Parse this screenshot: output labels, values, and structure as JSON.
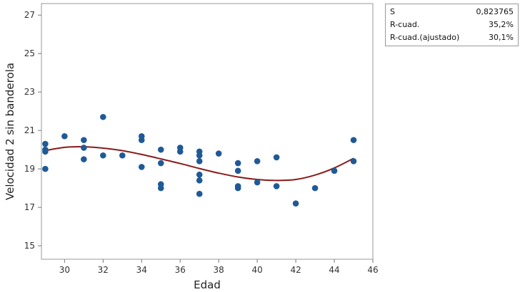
{
  "chart_data": {
    "type": "scatter",
    "title": "",
    "xlabel": "Edad",
    "ylabel": "Velocidad 2 sin banderola",
    "xlim": [
      28.8,
      46
    ],
    "ylim": [
      14.3,
      27.6
    ],
    "xticks": [
      "30",
      "32",
      "34",
      "36",
      "38",
      "40",
      "42",
      "44",
      "46"
    ],
    "yticks": [
      "15",
      "17",
      "19",
      "21",
      "23",
      "25",
      "27"
    ],
    "grid": false,
    "legend": "none",
    "points": [
      {
        "x": 29,
        "y": 20.3
      },
      {
        "x": 29,
        "y": 20.0
      },
      {
        "x": 29,
        "y": 19.9
      },
      {
        "x": 29,
        "y": 19.0
      },
      {
        "x": 30,
        "y": 20.7
      },
      {
        "x": 31,
        "y": 20.5
      },
      {
        "x": 31,
        "y": 20.1
      },
      {
        "x": 31,
        "y": 19.5
      },
      {
        "x": 32,
        "y": 21.7
      },
      {
        "x": 32,
        "y": 19.7
      },
      {
        "x": 33,
        "y": 19.7
      },
      {
        "x": 34,
        "y": 20.7
      },
      {
        "x": 34,
        "y": 20.5
      },
      {
        "x": 34,
        "y": 19.1
      },
      {
        "x": 35,
        "y": 20.0
      },
      {
        "x": 35,
        "y": 19.3
      },
      {
        "x": 35,
        "y": 18.2
      },
      {
        "x": 35,
        "y": 18.0
      },
      {
        "x": 36,
        "y": 20.1
      },
      {
        "x": 36,
        "y": 19.9
      },
      {
        "x": 37,
        "y": 19.9
      },
      {
        "x": 37,
        "y": 19.7
      },
      {
        "x": 37,
        "y": 19.4
      },
      {
        "x": 37,
        "y": 18.7
      },
      {
        "x": 37,
        "y": 18.4
      },
      {
        "x": 37,
        "y": 17.7
      },
      {
        "x": 38,
        "y": 19.8
      },
      {
        "x": 39,
        "y": 19.3
      },
      {
        "x": 39,
        "y": 18.9
      },
      {
        "x": 39,
        "y": 18.1
      },
      {
        "x": 39,
        "y": 18.0
      },
      {
        "x": 40,
        "y": 19.4
      },
      {
        "x": 40,
        "y": 18.3
      },
      {
        "x": 41,
        "y": 19.6
      },
      {
        "x": 41,
        "y": 18.1
      },
      {
        "x": 42,
        "y": 17.2
      },
      {
        "x": 43,
        "y": 18.0
      },
      {
        "x": 44,
        "y": 18.9
      },
      {
        "x": 45,
        "y": 20.5
      },
      {
        "x": 45,
        "y": 19.4
      }
    ],
    "fit_curve": [
      {
        "x": 29,
        "y": 19.95
      },
      {
        "x": 30,
        "y": 20.12
      },
      {
        "x": 31,
        "y": 20.15
      },
      {
        "x": 32,
        "y": 20.08
      },
      {
        "x": 33,
        "y": 19.95
      },
      {
        "x": 34,
        "y": 19.75
      },
      {
        "x": 35,
        "y": 19.52
      },
      {
        "x": 36,
        "y": 19.28
      },
      {
        "x": 37,
        "y": 19.02
      },
      {
        "x": 38,
        "y": 18.78
      },
      {
        "x": 39,
        "y": 18.58
      },
      {
        "x": 40,
        "y": 18.45
      },
      {
        "x": 41,
        "y": 18.4
      },
      {
        "x": 42,
        "y": 18.45
      },
      {
        "x": 43,
        "y": 18.68
      },
      {
        "x": 44,
        "y": 19.05
      },
      {
        "x": 45,
        "y": 19.55
      }
    ],
    "colors": {
      "points": "#1f5a96",
      "curve": "#8b1a1a",
      "frame": "#9a9a9a"
    }
  },
  "stats": [
    {
      "label": "S",
      "value": "0,823765"
    },
    {
      "label": "R-cuad.",
      "value": "35,2%"
    },
    {
      "label": "R-cuad.(ajustado)",
      "value": "30,1%"
    }
  ]
}
